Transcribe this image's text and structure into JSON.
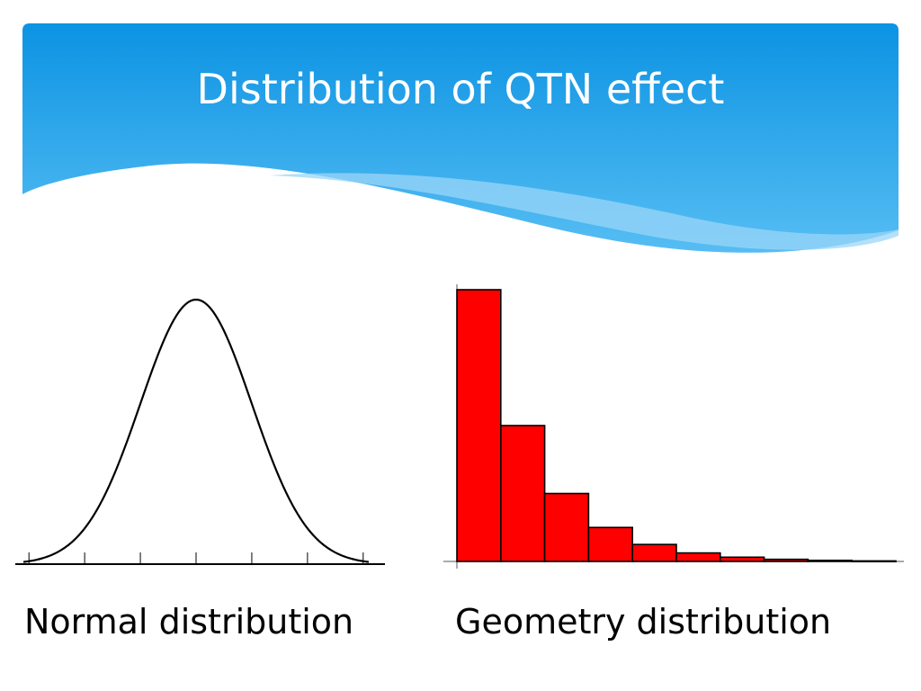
{
  "slide": {
    "title": "Distribution of QTN effect"
  },
  "colors": {
    "header_top": "#0c93e3",
    "header_bottom": "#4ab7f2",
    "bar_fill": "#ff0000",
    "curve": "#000000"
  },
  "chart_data": [
    {
      "type": "line",
      "caption": "Normal distribution",
      "curve": "gaussian",
      "mean": 0,
      "sd": 1,
      "xlim": [
        -3.1,
        3.1
      ],
      "x_ticks": [
        -3,
        -2,
        -1,
        0,
        1,
        2,
        3
      ],
      "tick_labels_shown": false
    },
    {
      "type": "bar",
      "caption": "Geometry distribution",
      "categories": [
        "1",
        "2",
        "3",
        "4",
        "5",
        "6",
        "7",
        "8",
        "9",
        "10"
      ],
      "values": [
        0.5,
        0.25,
        0.125,
        0.0625,
        0.03125,
        0.0156,
        0.0078,
        0.0039,
        0.002,
        0.001
      ],
      "ylim": [
        0,
        0.5
      ],
      "bar_color": "#ff0000",
      "tick_labels_shown": false
    }
  ]
}
